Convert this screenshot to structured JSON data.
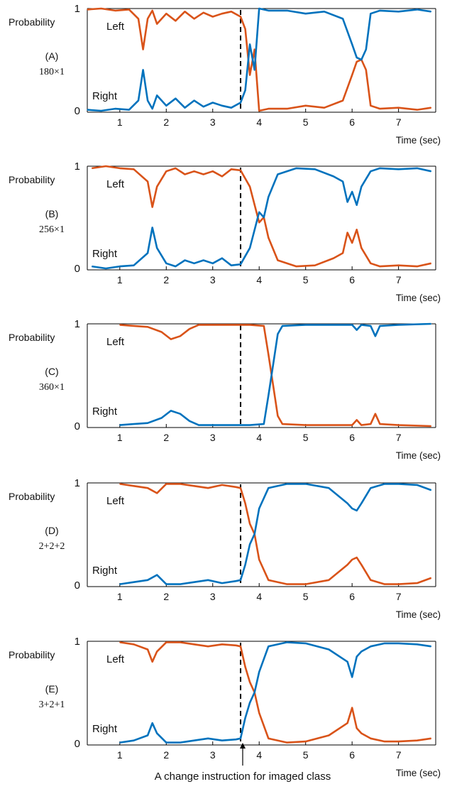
{
  "figure": {
    "y_axis_label": "Probability",
    "x_axis_label": "Time (sec)",
    "annotation": "A change instruction for imaged class",
    "colors": {
      "left": "#D95319",
      "right": "#0072BD",
      "marker_line": "#000000",
      "axes": "#000000"
    }
  },
  "chart_data": [
    {
      "type": "line",
      "panel_label": "(A)",
      "panel_sublabel": "180×1",
      "xlim": [
        0.3,
        7.8
      ],
      "ylim": [
        0,
        1
      ],
      "xticks": [
        1,
        2,
        3,
        4,
        5,
        6,
        7
      ],
      "yticks": [
        0,
        1
      ],
      "xlabel": "Time (sec)",
      "ylabel": "Probability",
      "vline_x": 3.6,
      "annotations": [
        {
          "text": "Left",
          "series": "Left"
        },
        {
          "text": "Right",
          "series": "Right"
        }
      ],
      "series": [
        {
          "name": "Left",
          "color": "#D95319",
          "x": [
            0.3,
            0.6,
            0.9,
            1.2,
            1.4,
            1.5,
            1.6,
            1.7,
            1.8,
            2.0,
            2.2,
            2.4,
            2.6,
            2.8,
            3.0,
            3.2,
            3.4,
            3.6,
            3.7,
            3.8,
            3.9,
            4.0,
            4.2,
            4.6,
            5.0,
            5.4,
            5.8,
            6.0,
            6.1,
            6.2,
            6.3,
            6.4,
            6.6,
            7.0,
            7.4,
            7.7
          ],
          "y": [
            0.99,
            1.0,
            0.98,
            0.99,
            0.9,
            0.6,
            0.9,
            0.98,
            0.85,
            0.95,
            0.88,
            0.97,
            0.9,
            0.96,
            0.92,
            0.95,
            0.97,
            0.92,
            0.8,
            0.35,
            0.6,
            0.0,
            0.02,
            0.02,
            0.05,
            0.03,
            0.1,
            0.35,
            0.48,
            0.5,
            0.4,
            0.05,
            0.02,
            0.03,
            0.01,
            0.03
          ]
        },
        {
          "name": "Right",
          "color": "#0072BD",
          "x": [
            0.3,
            0.6,
            0.9,
            1.2,
            1.4,
            1.5,
            1.6,
            1.7,
            1.8,
            2.0,
            2.2,
            2.4,
            2.6,
            2.8,
            3.0,
            3.2,
            3.4,
            3.6,
            3.7,
            3.8,
            3.9,
            4.0,
            4.2,
            4.6,
            5.0,
            5.4,
            5.8,
            6.0,
            6.1,
            6.2,
            6.3,
            6.4,
            6.6,
            7.0,
            7.4,
            7.7
          ],
          "y": [
            0.01,
            0.0,
            0.02,
            0.01,
            0.1,
            0.4,
            0.1,
            0.02,
            0.15,
            0.05,
            0.12,
            0.03,
            0.1,
            0.04,
            0.08,
            0.05,
            0.03,
            0.08,
            0.2,
            0.65,
            0.4,
            1.0,
            0.98,
            0.98,
            0.95,
            0.97,
            0.9,
            0.65,
            0.52,
            0.5,
            0.6,
            0.95,
            0.98,
            0.97,
            0.99,
            0.97
          ]
        }
      ]
    },
    {
      "type": "line",
      "panel_label": "(B)",
      "panel_sublabel": "256×1",
      "xlim": [
        0.3,
        7.8
      ],
      "ylim": [
        0,
        1
      ],
      "xticks": [
        1,
        2,
        3,
        4,
        5,
        6,
        7
      ],
      "yticks": [
        0,
        1
      ],
      "xlabel": "Time (sec)",
      "ylabel": "Probability",
      "vline_x": 3.6,
      "annotations": [
        {
          "text": "Left",
          "series": "Left"
        },
        {
          "text": "Right",
          "series": "Right"
        }
      ],
      "series": [
        {
          "name": "Left",
          "color": "#D95319",
          "x": [
            0.4,
            0.7,
            1.0,
            1.3,
            1.6,
            1.7,
            1.8,
            2.0,
            2.2,
            2.4,
            2.6,
            2.8,
            3.0,
            3.2,
            3.4,
            3.6,
            3.8,
            4.0,
            4.1,
            4.2,
            4.4,
            4.8,
            5.2,
            5.6,
            5.8,
            5.9,
            6.0,
            6.1,
            6.2,
            6.4,
            6.6,
            7.0,
            7.4,
            7.7
          ],
          "y": [
            0.98,
            1.0,
            0.98,
            0.97,
            0.85,
            0.6,
            0.8,
            0.95,
            0.98,
            0.92,
            0.95,
            0.92,
            0.95,
            0.9,
            0.97,
            0.96,
            0.8,
            0.45,
            0.5,
            0.3,
            0.08,
            0.02,
            0.03,
            0.1,
            0.15,
            0.35,
            0.25,
            0.38,
            0.2,
            0.05,
            0.02,
            0.03,
            0.02,
            0.05
          ]
        },
        {
          "name": "Right",
          "color": "#0072BD",
          "x": [
            0.4,
            0.7,
            1.0,
            1.3,
            1.6,
            1.7,
            1.8,
            2.0,
            2.2,
            2.4,
            2.6,
            2.8,
            3.0,
            3.2,
            3.4,
            3.6,
            3.8,
            4.0,
            4.1,
            4.2,
            4.4,
            4.8,
            5.2,
            5.6,
            5.8,
            5.9,
            6.0,
            6.1,
            6.2,
            6.4,
            6.6,
            7.0,
            7.4,
            7.7
          ],
          "y": [
            0.02,
            0.0,
            0.02,
            0.03,
            0.15,
            0.4,
            0.2,
            0.05,
            0.02,
            0.08,
            0.05,
            0.08,
            0.05,
            0.1,
            0.03,
            0.04,
            0.2,
            0.55,
            0.5,
            0.7,
            0.92,
            0.98,
            0.97,
            0.9,
            0.85,
            0.65,
            0.75,
            0.62,
            0.8,
            0.95,
            0.98,
            0.97,
            0.98,
            0.95
          ]
        }
      ]
    },
    {
      "type": "line",
      "panel_label": "(C)",
      "panel_sublabel": "360×1",
      "xlim": [
        0.3,
        7.8
      ],
      "ylim": [
        0,
        1
      ],
      "xticks": [
        1,
        2,
        3,
        4,
        5,
        6,
        7
      ],
      "yticks": [
        0,
        1
      ],
      "xlabel": "Time (sec)",
      "ylabel": "Probability",
      "vline_x": 3.6,
      "annotations": [
        {
          "text": "Left",
          "series": "Left"
        },
        {
          "text": "Right",
          "series": "Right"
        }
      ],
      "series": [
        {
          "name": "Left",
          "color": "#D95319",
          "x": [
            1.0,
            1.3,
            1.6,
            1.9,
            2.1,
            2.3,
            2.5,
            2.7,
            3.0,
            3.4,
            3.8,
            4.1,
            4.2,
            4.3,
            4.4,
            4.5,
            5.0,
            5.5,
            6.0,
            6.1,
            6.2,
            6.4,
            6.5,
            6.6,
            7.0,
            7.7
          ],
          "y": [
            0.99,
            0.98,
            0.97,
            0.92,
            0.85,
            0.88,
            0.95,
            0.99,
            0.99,
            0.99,
            0.99,
            0.98,
            0.7,
            0.4,
            0.1,
            0.02,
            0.01,
            0.01,
            0.01,
            0.06,
            0.01,
            0.02,
            0.12,
            0.02,
            0.01,
            0.0
          ]
        },
        {
          "name": "Right",
          "color": "#0072BD",
          "x": [
            1.0,
            1.3,
            1.6,
            1.9,
            2.1,
            2.3,
            2.5,
            2.7,
            3.0,
            3.4,
            3.8,
            4.1,
            4.2,
            4.3,
            4.4,
            4.5,
            5.0,
            5.5,
            6.0,
            6.1,
            6.2,
            6.4,
            6.5,
            6.6,
            7.0,
            7.7
          ],
          "y": [
            0.01,
            0.02,
            0.03,
            0.08,
            0.15,
            0.12,
            0.05,
            0.01,
            0.01,
            0.01,
            0.01,
            0.02,
            0.3,
            0.6,
            0.9,
            0.98,
            0.99,
            0.99,
            0.99,
            0.94,
            0.99,
            0.98,
            0.88,
            0.98,
            0.99,
            1.0
          ]
        }
      ]
    },
    {
      "type": "line",
      "panel_label": "(D)",
      "panel_sublabel": "2+2+2",
      "xlim": [
        0.3,
        7.8
      ],
      "ylim": [
        0,
        1
      ],
      "xticks": [
        1,
        2,
        3,
        4,
        5,
        6,
        7
      ],
      "yticks": [
        0,
        1
      ],
      "xlabel": "Time (sec)",
      "ylabel": "Probability",
      "vline_x": 3.6,
      "annotations": [
        {
          "text": "Left",
          "series": "Left"
        },
        {
          "text": "Right",
          "series": "Right"
        }
      ],
      "series": [
        {
          "name": "Left",
          "color": "#D95319",
          "x": [
            1.0,
            1.3,
            1.6,
            1.8,
            2.0,
            2.3,
            2.6,
            2.9,
            3.2,
            3.5,
            3.6,
            3.7,
            3.8,
            3.9,
            4.0,
            4.2,
            4.6,
            5.0,
            5.5,
            5.9,
            6.0,
            6.1,
            6.2,
            6.4,
            6.7,
            7.0,
            7.4,
            7.7
          ],
          "y": [
            0.99,
            0.97,
            0.95,
            0.9,
            0.99,
            0.99,
            0.97,
            0.95,
            0.98,
            0.96,
            0.95,
            0.8,
            0.6,
            0.5,
            0.25,
            0.05,
            0.01,
            0.01,
            0.05,
            0.2,
            0.25,
            0.27,
            0.2,
            0.05,
            0.01,
            0.01,
            0.02,
            0.07
          ]
        },
        {
          "name": "Right",
          "color": "#0072BD",
          "x": [
            1.0,
            1.3,
            1.6,
            1.8,
            2.0,
            2.3,
            2.6,
            2.9,
            3.2,
            3.5,
            3.6,
            3.7,
            3.8,
            3.9,
            4.0,
            4.2,
            4.6,
            5.0,
            5.5,
            5.9,
            6.0,
            6.1,
            6.2,
            6.4,
            6.7,
            7.0,
            7.4,
            7.7
          ],
          "y": [
            0.01,
            0.03,
            0.05,
            0.1,
            0.01,
            0.01,
            0.03,
            0.05,
            0.02,
            0.04,
            0.05,
            0.2,
            0.4,
            0.5,
            0.75,
            0.95,
            0.99,
            0.99,
            0.95,
            0.8,
            0.75,
            0.73,
            0.8,
            0.95,
            0.99,
            0.99,
            0.98,
            0.93
          ]
        }
      ]
    },
    {
      "type": "line",
      "panel_label": "(E)",
      "panel_sublabel": "3+2+1",
      "xlim": [
        0.3,
        7.8
      ],
      "ylim": [
        0,
        1
      ],
      "xticks": [
        1,
        2,
        3,
        4,
        5,
        6,
        7
      ],
      "yticks": [
        0,
        1
      ],
      "xlabel": "Time (sec)",
      "ylabel": "Probability",
      "vline_x": 3.6,
      "annotations": [
        {
          "text": "Left",
          "series": "Left"
        },
        {
          "text": "Right",
          "series": "Right"
        }
      ],
      "series": [
        {
          "name": "Left",
          "color": "#D95319",
          "x": [
            1.0,
            1.3,
            1.6,
            1.7,
            1.8,
            2.0,
            2.3,
            2.6,
            2.9,
            3.2,
            3.5,
            3.6,
            3.7,
            3.8,
            3.9,
            4.0,
            4.2,
            4.6,
            5.0,
            5.5,
            5.9,
            6.0,
            6.1,
            6.2,
            6.4,
            6.7,
            7.0,
            7.4,
            7.7
          ],
          "y": [
            0.99,
            0.97,
            0.92,
            0.8,
            0.9,
            0.99,
            0.99,
            0.97,
            0.95,
            0.97,
            0.96,
            0.95,
            0.75,
            0.6,
            0.5,
            0.3,
            0.05,
            0.01,
            0.02,
            0.08,
            0.2,
            0.35,
            0.15,
            0.1,
            0.05,
            0.02,
            0.02,
            0.03,
            0.05
          ]
        },
        {
          "name": "Right",
          "color": "#0072BD",
          "x": [
            1.0,
            1.3,
            1.6,
            1.7,
            1.8,
            2.0,
            2.3,
            2.6,
            2.9,
            3.2,
            3.5,
            3.6,
            3.7,
            3.8,
            3.9,
            4.0,
            4.2,
            4.6,
            5.0,
            5.5,
            5.9,
            6.0,
            6.1,
            6.2,
            6.4,
            6.7,
            7.0,
            7.4,
            7.7
          ],
          "y": [
            0.01,
            0.03,
            0.08,
            0.2,
            0.1,
            0.01,
            0.01,
            0.03,
            0.05,
            0.03,
            0.04,
            0.05,
            0.25,
            0.4,
            0.5,
            0.7,
            0.95,
            0.99,
            0.98,
            0.92,
            0.8,
            0.65,
            0.85,
            0.9,
            0.95,
            0.98,
            0.98,
            0.97,
            0.95
          ]
        }
      ]
    }
  ]
}
